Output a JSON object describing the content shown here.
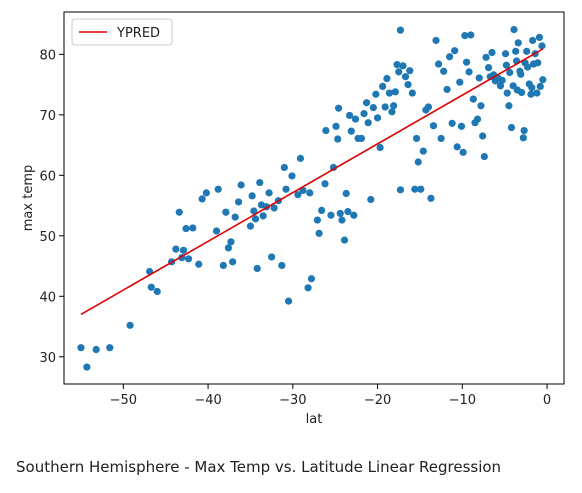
{
  "caption": "Southern Hemisphere - Max Temp vs. Latitude Linear Regression",
  "chart_data": {
    "type": "scatter",
    "xlabel": "lat",
    "ylabel": "max temp",
    "xlim": [
      -57,
      2
    ],
    "ylim": [
      25.5,
      87
    ],
    "xticks": [
      -50,
      -40,
      -30,
      -20,
      -10,
      0
    ],
    "xtick_labels": [
      "−50",
      "−40",
      "−30",
      "−20",
      "−10",
      "0"
    ],
    "yticks": [
      30,
      40,
      50,
      60,
      70,
      80
    ],
    "ytick_labels": [
      "30",
      "40",
      "50",
      "60",
      "70",
      "80"
    ],
    "grid": false,
    "legend": {
      "entries": [
        "YPRED"
      ],
      "placement": "top-left"
    },
    "colors": {
      "points": "#1f77b4",
      "regression": "#dd0000",
      "axis": "#000000"
    },
    "regression": {
      "name": "YPRED",
      "x": [
        -55,
        -0.5
      ],
      "y": [
        37,
        80.9
      ]
    },
    "points": [
      [
        -55,
        31.5
      ],
      [
        -54.3,
        28.3
      ],
      [
        -53.2,
        31.2
      ],
      [
        -51.6,
        31.5
      ],
      [
        -49.2,
        35.2
      ],
      [
        -46.9,
        44.1
      ],
      [
        -46.7,
        41.5
      ],
      [
        -46,
        40.8
      ],
      [
        -44.3,
        45.7
      ],
      [
        -43.8,
        47.8
      ],
      [
        -43.4,
        53.9
      ],
      [
        -43.1,
        46.4
      ],
      [
        -42.9,
        47.6
      ],
      [
        -42.6,
        51.2
      ],
      [
        -42.3,
        46.2
      ],
      [
        -41.8,
        51.3
      ],
      [
        -41.1,
        45.3
      ],
      [
        -40.7,
        56.1
      ],
      [
        -40.2,
        57.1
      ],
      [
        -39,
        50.8
      ],
      [
        -38.8,
        57.7
      ],
      [
        -38.2,
        45.1
      ],
      [
        -37.9,
        53.9
      ],
      [
        -37.6,
        48
      ],
      [
        -37.3,
        49
      ],
      [
        -37.1,
        45.7
      ],
      [
        -36.8,
        53.1
      ],
      [
        -36.4,
        55.6
      ],
      [
        -36.1,
        58.4
      ],
      [
        -35,
        51.6
      ],
      [
        -34.8,
        56.6
      ],
      [
        -34.6,
        54.1
      ],
      [
        -34.4,
        52.8
      ],
      [
        -34.2,
        44.6
      ],
      [
        -33.9,
        58.8
      ],
      [
        -33.7,
        55.1
      ],
      [
        -33.5,
        53.3
      ],
      [
        -33.1,
        54.8
      ],
      [
        -32.8,
        57.1
      ],
      [
        -32.5,
        46.5
      ],
      [
        -32.2,
        54.6
      ],
      [
        -31.7,
        55.8
      ],
      [
        -31.3,
        45.1
      ],
      [
        -30.8,
        57.7
      ],
      [
        -31,
        61.3
      ],
      [
        -30.5,
        39.2
      ],
      [
        -30.1,
        59.9
      ],
      [
        -29.4,
        56.8
      ],
      [
        -29.1,
        62.8
      ],
      [
        -28.8,
        57.5
      ],
      [
        -28.2,
        41.4
      ],
      [
        -28,
        57.1
      ],
      [
        -27.8,
        42.9
      ],
      [
        -27.1,
        52.6
      ],
      [
        -26.9,
        50.4
      ],
      [
        -26.6,
        54.2
      ],
      [
        -26.2,
        58.6
      ],
      [
        -26.1,
        67.4
      ],
      [
        -25.5,
        53.4
      ],
      [
        -25.2,
        61.3
      ],
      [
        -24.9,
        68.1
      ],
      [
        -24.7,
        66
      ],
      [
        -24.6,
        71.1
      ],
      [
        -24.4,
        53.7
      ],
      [
        -24.2,
        52.6
      ],
      [
        -23.9,
        49.3
      ],
      [
        -23.7,
        57
      ],
      [
        -23.5,
        54
      ],
      [
        -23.3,
        69.9
      ],
      [
        -23.1,
        67.3
      ],
      [
        -22.8,
        53.4
      ],
      [
        -22.6,
        69.3
      ],
      [
        -22.3,
        66.1
      ],
      [
        -21.9,
        66.1
      ],
      [
        -21.6,
        70.2
      ],
      [
        -21.3,
        72
      ],
      [
        -21.1,
        68.7
      ],
      [
        -20.8,
        56
      ],
      [
        -20.5,
        71.2
      ],
      [
        -20.2,
        73.4
      ],
      [
        -20,
        69.5
      ],
      [
        -19.7,
        64.6
      ],
      [
        -19.4,
        74.7
      ],
      [
        -19.1,
        71.3
      ],
      [
        -18.9,
        76
      ],
      [
        -18.6,
        73.6
      ],
      [
        -18.3,
        70.5
      ],
      [
        -18.1,
        71.5
      ],
      [
        -17.9,
        73.8
      ],
      [
        -17.7,
        78.3
      ],
      [
        -17.5,
        77.1
      ],
      [
        -17.3,
        84
      ],
      [
        -17.3,
        57.6
      ],
      [
        -17,
        78.1
      ],
      [
        -16.7,
        76.3
      ],
      [
        -16.4,
        75
      ],
      [
        -16.2,
        77.3
      ],
      [
        -15.9,
        73.6
      ],
      [
        -15.6,
        57.7
      ],
      [
        -15.4,
        66.1
      ],
      [
        -15.2,
        62.2
      ],
      [
        -14.9,
        57.7
      ],
      [
        -14.6,
        64
      ],
      [
        -14.3,
        70.8
      ],
      [
        -14,
        71.3
      ],
      [
        -13.7,
        56.2
      ],
      [
        -13.4,
        68.2
      ],
      [
        -13.1,
        82.3
      ],
      [
        -12.8,
        78.4
      ],
      [
        -12.5,
        66.1
      ],
      [
        -12.2,
        77.2
      ],
      [
        -11.8,
        74.2
      ],
      [
        -11.5,
        79.6
      ],
      [
        -11.2,
        68.6
      ],
      [
        -10.9,
        80.6
      ],
      [
        -10.6,
        64.7
      ],
      [
        -10.3,
        75.4
      ],
      [
        -10.1,
        68.1
      ],
      [
        -9.9,
        63.8
      ],
      [
        -9.7,
        83.1
      ],
      [
        -9.5,
        78.7
      ],
      [
        -9.2,
        77.1
      ],
      [
        -9,
        83.2
      ],
      [
        -8.7,
        72.6
      ],
      [
        -8.5,
        68.7
      ],
      [
        -8.2,
        69.3
      ],
      [
        -8,
        76.1
      ],
      [
        -7.8,
        71.5
      ],
      [
        -7.6,
        66.5
      ],
      [
        -7.4,
        63.1
      ],
      [
        -7.2,
        79.5
      ],
      [
        -6.9,
        77.8
      ],
      [
        -6.7,
        76.3
      ],
      [
        -6.5,
        80.3
      ],
      [
        -6.3,
        76.6
      ],
      [
        -6.1,
        75.6
      ],
      [
        -5.8,
        76.1
      ],
      [
        -5.5,
        74.8
      ],
      [
        -5.3,
        75.7
      ],
      [
        -4.9,
        80.1
      ],
      [
        -4.8,
        78.2
      ],
      [
        -4.7,
        73.6
      ],
      [
        -4.5,
        71.5
      ],
      [
        -4.4,
        77
      ],
      [
        -4.2,
        67.9
      ],
      [
        -4,
        74.8
      ],
      [
        -3.9,
        84.1
      ],
      [
        -3.7,
        80.5
      ],
      [
        -3.6,
        78.9
      ],
      [
        -3.5,
        74.1
      ],
      [
        -3.4,
        81.9
      ],
      [
        -3.2,
        77.2
      ],
      [
        -3.1,
        76.7
      ],
      [
        -3,
        73.7
      ],
      [
        -2.8,
        66.2
      ],
      [
        -2.7,
        67.4
      ],
      [
        -2.6,
        78.6
      ],
      [
        -2.4,
        80.5
      ],
      [
        -2.3,
        77.9
      ],
      [
        -2.1,
        75.1
      ],
      [
        -1.9,
        73.4
      ],
      [
        -1.8,
        74.5
      ],
      [
        -1.7,
        82.3
      ],
      [
        -1.6,
        78.4
      ],
      [
        -1.4,
        80.1
      ],
      [
        -1.2,
        73.6
      ],
      [
        -1.1,
        78.6
      ],
      [
        -0.9,
        82.8
      ],
      [
        -0.8,
        74.7
      ],
      [
        -0.6,
        81.4
      ],
      [
        -0.5,
        75.8
      ]
    ]
  }
}
